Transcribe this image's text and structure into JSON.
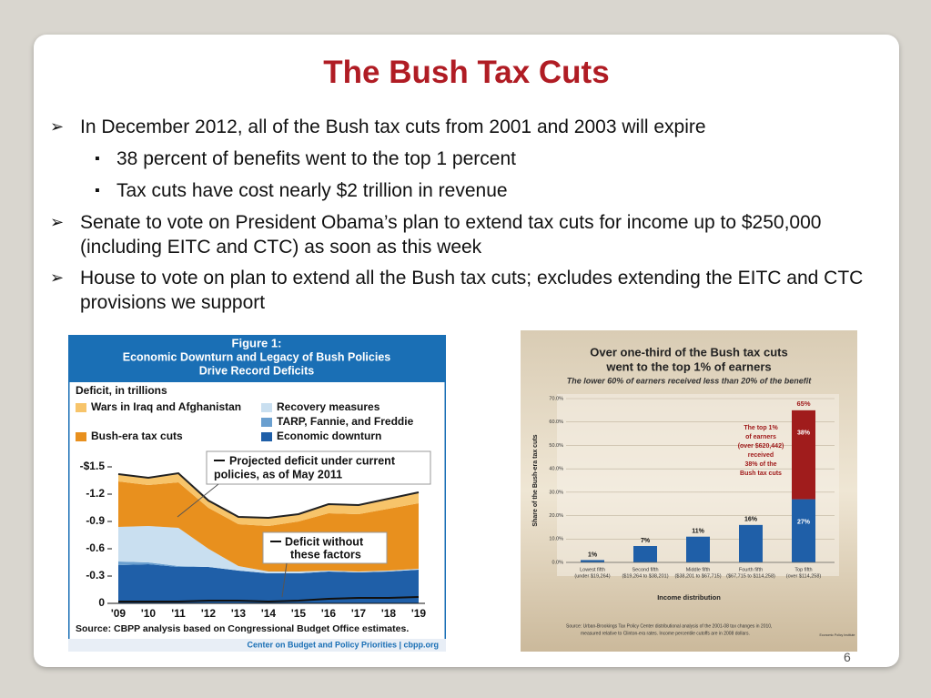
{
  "slide": {
    "title": "The Bush Tax Cuts",
    "bullets": [
      {
        "text": "In December 2012, all of the Bush tax cuts from 2001 and 2003 will expire",
        "sub": [
          "38 percent of benefits went to the top 1 percent",
          "Tax cuts have cost nearly $2 trillion in revenue"
        ]
      },
      {
        "text": "Senate to vote on President Obama’s plan to extend tax cuts for income up to $250,000 (including EITC and CTC) as soon as this week",
        "sub": []
      },
      {
        "text": "House to vote on plan to extend all the Bush tax cuts; excludes extending the EITC and CTC provisions we support",
        "sub": []
      }
    ],
    "page_number": "6"
  },
  "chart_data": [
    {
      "type": "area",
      "figure_label": "Figure 1:",
      "title_lines": [
        "Economic Downturn and Legacy of Bush Policies",
        "Drive Record Deficits"
      ],
      "ylabel": "Deficit, in trillions",
      "categories": [
        "'09",
        "'10",
        "'11",
        "'12",
        "'13",
        "'14",
        "'15",
        "'16",
        "'17",
        "'18",
        "'19"
      ],
      "series": [
        {
          "name": "Economic downturn",
          "color": "#1f5fa8",
          "values": [
            -0.42,
            -0.43,
            -0.4,
            -0.4,
            -0.36,
            -0.33,
            -0.33,
            -0.35,
            -0.34,
            -0.35,
            -0.37
          ]
        },
        {
          "name": "TARP, Fannie, and Freddie",
          "color": "#6a9fcf",
          "values": [
            -0.04,
            -0.02,
            -0.01,
            0,
            0,
            0,
            0,
            0,
            0,
            0,
            0
          ]
        },
        {
          "name": "Recovery measures",
          "color": "#c9dff0",
          "values": [
            -0.38,
            -0.4,
            -0.42,
            -0.2,
            -0.05,
            -0.02,
            -0.02,
            -0.01,
            -0.01,
            -0.01,
            -0.01
          ]
        },
        {
          "name": "Bush-era tax cuts",
          "color": "#e8901e",
          "values": [
            -0.5,
            -0.45,
            -0.5,
            -0.45,
            -0.46,
            -0.5,
            -0.55,
            -0.63,
            -0.63,
            -0.68,
            -0.72
          ]
        },
        {
          "name": "Wars in Iraq and Afghanistan",
          "color": "#f7c46a",
          "values": [
            -0.08,
            -0.08,
            -0.1,
            -0.08,
            -0.08,
            -0.09,
            -0.08,
            -0.1,
            -0.1,
            -0.11,
            -0.12
          ]
        }
      ],
      "baseline": {
        "name_lines": [
          "Deficit without",
          "these factors"
        ],
        "values": [
          -0.02,
          -0.02,
          -0.02,
          -0.03,
          -0.03,
          -0.02,
          -0.03,
          -0.05,
          -0.06,
          -0.06,
          -0.07
        ]
      },
      "total_note_lines": [
        "Projected deficit under current",
        "policies, as of May 2011"
      ],
      "ylim": [
        0,
        -1.5
      ],
      "yticks": [
        {
          "value": -1.5,
          "label": "-$1.5"
        },
        -1.2,
        -0.9,
        -0.6,
        -0.3,
        0
      ],
      "source": "Source: CBPP analysis based on Congressional Budget Office estimates.",
      "credit": "Center on Budget and Policy Priorities | cbpp.org"
    },
    {
      "type": "bar",
      "title_lines": [
        "Over one-third of the Bush tax cuts",
        "went to the top 1% of earners"
      ],
      "subtitle": "The lower 60% of earners received less than 20% of the benefit",
      "ylabel": "Share of the Bush-era tax cuts",
      "xlabel": "Income distribution",
      "categories": [
        "Lowest fifth",
        "Second fifth",
        "Middle fifth",
        "Fourth fifth",
        "Top fifth"
      ],
      "category_ranges": [
        "(under $19,264)",
        "($19,264 to $38,201)",
        "($38,201 to $67,715)",
        "($67,715 to $114,258)",
        "(over $114,258)"
      ],
      "series": [
        {
          "color": "#1f5fa8",
          "values": [
            1,
            7,
            11,
            16,
            27
          ],
          "value_labels": [
            "1%",
            "7%",
            "11%",
            "16%",
            "27%"
          ]
        },
        {
          "color": "#a01c1c",
          "values": [
            null,
            null,
            null,
            null,
            38
          ],
          "value_labels": [
            null,
            null,
            null,
            null,
            "38%"
          ]
        }
      ],
      "total_label": "65%",
      "annotation_lines": [
        "The top 1%",
        "of earners",
        "(over $620,442)",
        "received",
        "38% of the",
        "Bush tax cuts"
      ],
      "ylim": [
        0,
        70
      ],
      "yticks": [
        {
          "value": 0,
          "label": "0.0%"
        },
        {
          "value": 10,
          "label": "10.0%"
        },
        {
          "value": 20,
          "label": "20.0%"
        },
        {
          "value": 30,
          "label": "30.0%"
        },
        {
          "value": 40,
          "label": "40.0%"
        },
        {
          "value": 50,
          "label": "50.0%"
        },
        {
          "value": 60,
          "label": "60.0%"
        },
        {
          "value": 70,
          "label": "70.0%"
        }
      ],
      "source_lines": [
        "Source: Urban-Brookings Tax Policy Center distributional analysis of the 2001-08 tax changes in 2010,",
        "measured relative to Clinton-era rates. Income percentile cutoffs are in 2008 dollars."
      ],
      "credit": "Economic Policy Institute"
    }
  ]
}
